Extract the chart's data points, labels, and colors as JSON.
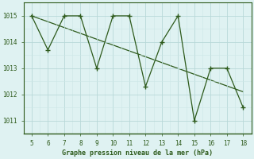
{
  "x": [
    5,
    6,
    7,
    8,
    9,
    10,
    11,
    12,
    13,
    14,
    15,
    16,
    17,
    18
  ],
  "y": [
    1015.0,
    1013.7,
    1015.0,
    1015.0,
    1013.0,
    1015.0,
    1015.0,
    1012.3,
    1014.0,
    1015.0,
    1011.0,
    1013.0,
    1013.0,
    1011.5
  ],
  "trend_x": [
    5,
    18
  ],
  "trend_y": [
    1015.0,
    1012.1
  ],
  "line_color": "#2d5a1b",
  "bg_color": "#dff2f2",
  "grid_major_color": "#b8d8d8",
  "grid_minor_color": "#cce6e6",
  "xlabel": "Graphe pression niveau de la mer (hPa)",
  "xlim": [
    4.5,
    18.5
  ],
  "ylim": [
    1010.5,
    1015.5
  ],
  "yticks": [
    1011,
    1012,
    1013,
    1014,
    1015
  ],
  "xticks": [
    5,
    6,
    7,
    8,
    9,
    10,
    11,
    12,
    13,
    14,
    15,
    16,
    17,
    18
  ]
}
